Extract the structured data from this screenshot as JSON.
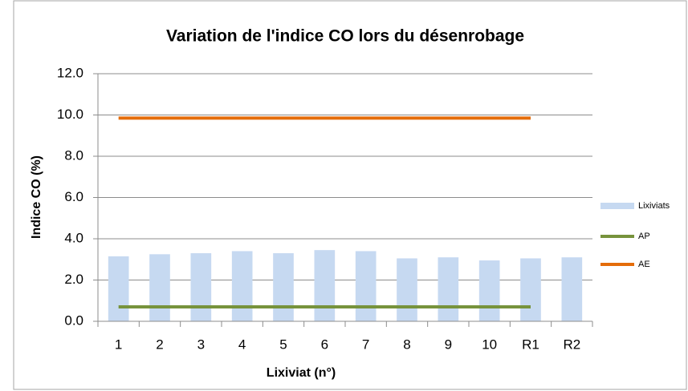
{
  "chart_data": {
    "type": "bar",
    "title": "Variation de l'indice CO lors du désenrobage",
    "x_label": "Lixiviat (n°)",
    "y_label": "Indice CO (%)",
    "categories": [
      "1",
      "2",
      "3",
      "4",
      "5",
      "6",
      "7",
      "8",
      "9",
      "10",
      "R1",
      "R2"
    ],
    "series": [
      {
        "name": "Lixiviats",
        "type": "bar",
        "color": "#c6d9f1",
        "values": [
          3.15,
          3.25,
          3.3,
          3.4,
          3.3,
          3.45,
          3.4,
          3.05,
          3.1,
          2.95,
          3.05,
          3.1
        ]
      },
      {
        "name": "AP",
        "type": "line",
        "color": "#77933c",
        "values": [
          0.7,
          0.7,
          0.7,
          0.7,
          0.7,
          0.7,
          0.7,
          0.7,
          0.7,
          0.7,
          0.7,
          null
        ]
      },
      {
        "name": "AE",
        "type": "line",
        "color": "#e46c0a",
        "values": [
          9.85,
          9.85,
          9.85,
          9.85,
          9.85,
          9.85,
          9.85,
          9.85,
          9.85,
          9.85,
          9.85,
          null
        ]
      }
    ],
    "ylim": [
      0,
      12
    ],
    "yticks": [
      {
        "value": 0,
        "label": "0.0"
      },
      {
        "value": 2,
        "label": "2.0"
      },
      {
        "value": 4,
        "label": "4.0"
      },
      {
        "value": 6,
        "label": "6.0"
      },
      {
        "value": 8,
        "label": "8.0"
      },
      {
        "value": 10,
        "label": "10.0"
      },
      {
        "value": 12,
        "label": "12.0"
      }
    ],
    "grid": true,
    "legend": "right"
  }
}
